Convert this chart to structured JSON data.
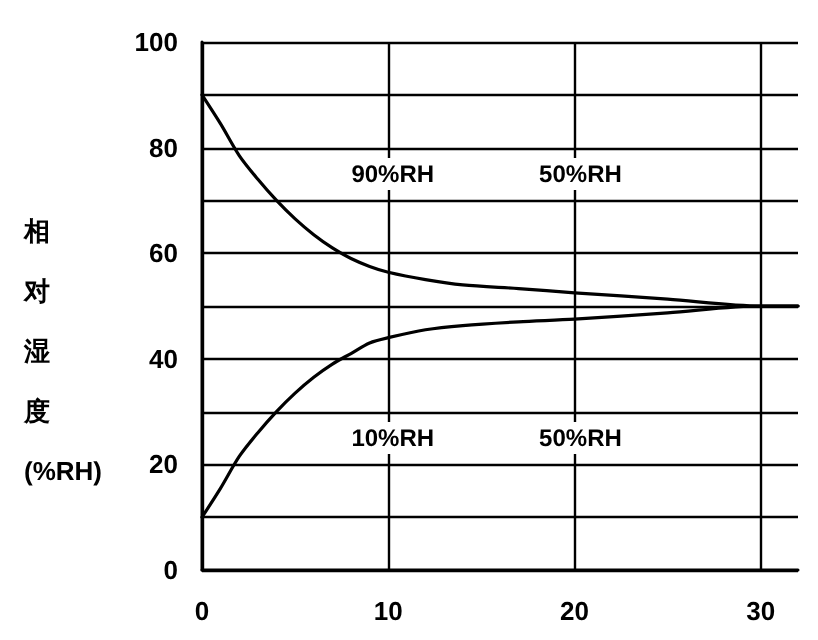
{
  "chart_data": {
    "type": "line",
    "ylabel": "相对湿度(%RH)",
    "xlim": [
      0,
      32
    ],
    "xticks": [
      0,
      10,
      20,
      30
    ],
    "ylim": [
      0,
      100
    ],
    "yticks": [
      0,
      {
        "value": 10,
        "label": null
      },
      20,
      {
        "value": 30,
        "label": null
      },
      40,
      {
        "value": 50,
        "label": null
      },
      60,
      {
        "value": 70,
        "label": null
      },
      80,
      {
        "value": 90,
        "label": null
      },
      100
    ],
    "grid": true,
    "marker": "none",
    "line_style": "solid",
    "series": [
      {
        "color": "#000000",
        "x": [
          0,
          1,
          2,
          3,
          4,
          5,
          6,
          7,
          8,
          9,
          10,
          12,
          14,
          17,
          20,
          25,
          30,
          32
        ],
        "values": [
          90,
          84.5,
          78.5,
          74,
          70,
          66.5,
          63.5,
          61,
          59,
          57.5,
          56.4,
          55,
          54,
          53.3,
          52.5,
          51.3,
          50,
          50
        ]
      },
      {
        "color": "#000000",
        "x": [
          0,
          1,
          2,
          3,
          4,
          5,
          6,
          7,
          8,
          9,
          10,
          12,
          14,
          17,
          20,
          25,
          30,
          32
        ],
        "values": [
          10,
          15.5,
          21.5,
          26,
          30,
          33.5,
          36.5,
          39,
          41,
          43,
          44,
          45.5,
          46.3,
          47,
          47.5,
          48.7,
          50,
          50
        ]
      }
    ],
    "annotations": [
      "90%RH",
      "50%RH",
      "10%RH",
      "50%RH"
    ]
  }
}
